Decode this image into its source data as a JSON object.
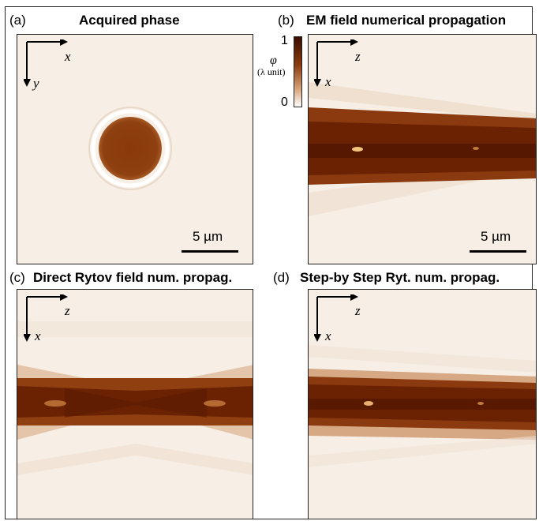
{
  "panels": {
    "a": {
      "tag": "(a)",
      "title": "Acquired phase",
      "axis_h": "x",
      "axis_v": "y",
      "scalebar": "5 µm"
    },
    "b": {
      "tag": "(b)",
      "title": "EM field numerical propagation",
      "axis_h": "z",
      "axis_v": "x",
      "scalebar": "5 µm"
    },
    "c": {
      "tag": "(c)",
      "title": "Direct Rytov field num. propag.",
      "axis_h": "z",
      "axis_v": "x"
    },
    "d": {
      "tag": "(d)",
      "title": "Step-by Step Ryt. num. propag.",
      "axis_h": "z",
      "axis_v": "x"
    }
  },
  "colorbar": {
    "symbol": "φ",
    "unit": "(λ unit)",
    "max": "1",
    "min": "0"
  },
  "colors": {
    "high": "#4a0f00",
    "mid": "#a0501c",
    "low": "#f6ede3",
    "white": "#ffffff"
  }
}
